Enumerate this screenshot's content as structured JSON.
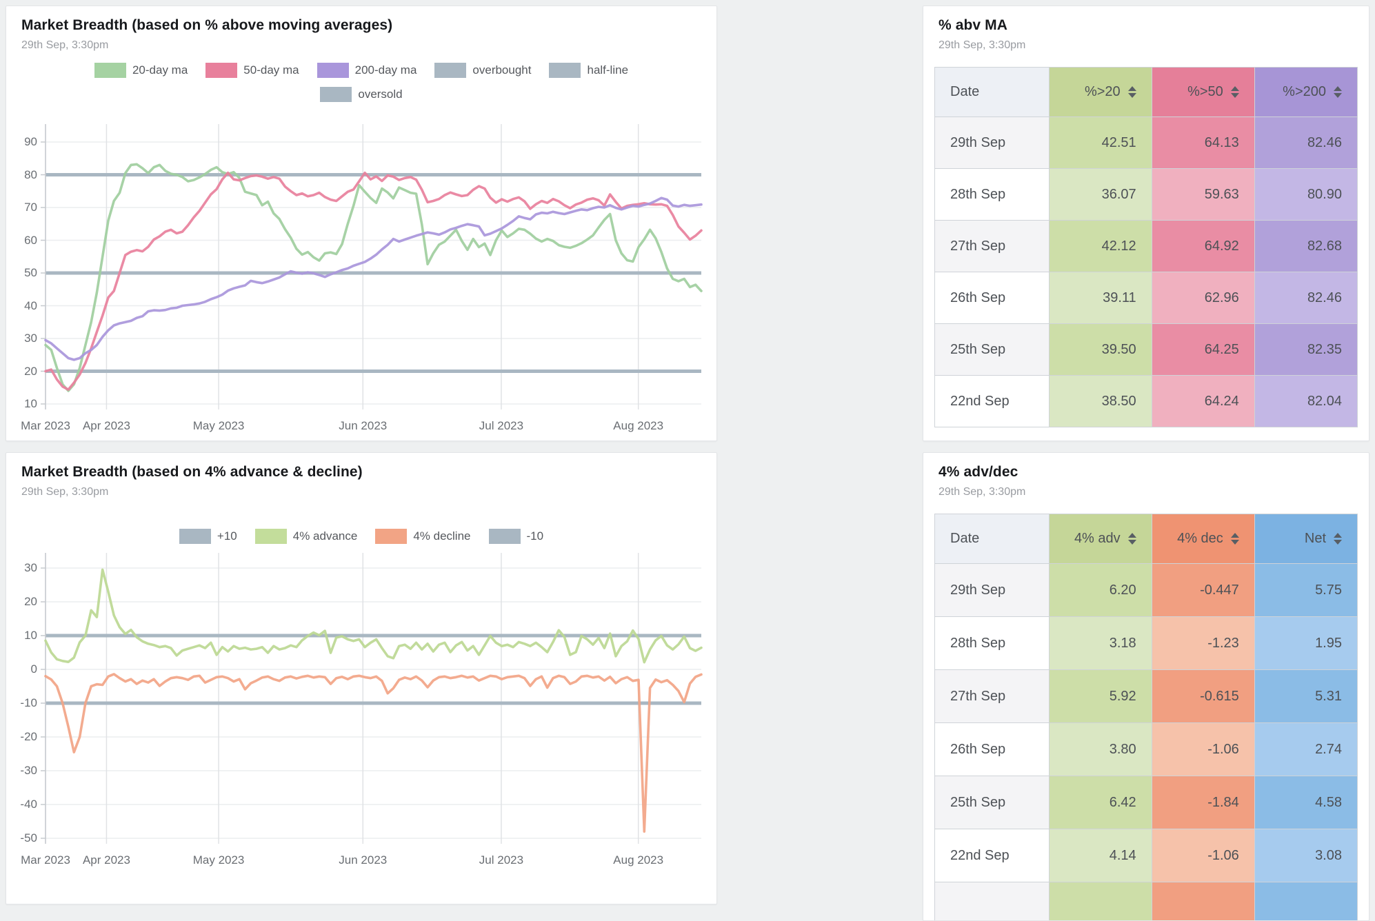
{
  "app": {
    "background": "#eef0f1",
    "accent_band_color": "#a9b7c2"
  },
  "panels": [
    {
      "title": "Market Breadth (based on % above moving averages)",
      "subtitle": "29th Sep, 3:30pm"
    },
    {
      "title": "Market Breadth (based on 4% advance & decline)",
      "subtitle": "29th Sep, 3:30pm"
    },
    {
      "title": "% abv MA",
      "subtitle": "29th Sep, 3:30pm"
    },
    {
      "title": "4% adv/dec",
      "subtitle": "29th Sep, 3:30pm"
    }
  ],
  "chart_data": [
    {
      "type": "line",
      "title": "Market Breadth (based on % above moving averages)",
      "legend": [
        {
          "label": "20-day ma",
          "color": "#a5d2a2",
          "row": 1
        },
        {
          "label": "50-day ma",
          "color": "#e8809c",
          "row": 1
        },
        {
          "label": "200-day ma",
          "color": "#a996db",
          "row": 1
        },
        {
          "label": "overbought",
          "color": "#a9b7c2",
          "row": 1
        },
        {
          "label": "half-line",
          "color": "#a9b7c2",
          "row": 1
        },
        {
          "label": "oversold",
          "color": "#a9b7c2",
          "row": 2
        }
      ],
      "x_labels": [
        {
          "label": "Mar 2023",
          "f": 0.0
        },
        {
          "label": "Apr 2023",
          "f": 0.093
        },
        {
          "label": "May 2023",
          "f": 0.264
        },
        {
          "label": "Jun 2023",
          "f": 0.484
        },
        {
          "label": "Jul 2023",
          "f": 0.695
        },
        {
          "label": "Aug 2023",
          "f": 0.904
        }
      ],
      "y_ticks": [
        90,
        80,
        70,
        60,
        50,
        40,
        30,
        20,
        10
      ],
      "ylim": [
        10,
        90
      ],
      "grid": true,
      "legend_position": "top",
      "bands": [
        {
          "label": "overbought",
          "value": 80
        },
        {
          "label": "half-line",
          "value": 50
        },
        {
          "label": "oversold",
          "value": 20
        }
      ],
      "series": [
        {
          "name": "20-day ma",
          "color": "#9fce9e",
          "values": [
            28,
            26.5,
            21,
            16,
            14,
            16,
            21,
            28,
            35,
            44,
            55,
            66,
            72,
            74.5,
            80.5,
            83,
            83.2,
            82,
            80.5,
            82.3,
            83,
            81.2,
            80.3,
            80,
            79.3,
            78,
            78.4,
            79.2,
            80.2,
            81.5,
            82.3,
            80.8,
            80.2,
            80.8,
            79,
            74.8,
            74.3,
            73.8,
            70.7,
            71.8,
            68.2,
            66.5,
            63.4,
            60.8,
            57.4,
            55.6,
            56.4,
            54.8,
            53.8,
            56,
            56.3,
            55.8,
            58.8,
            65,
            70.5,
            76.8,
            74.8,
            72.9,
            71.4,
            75.8,
            74.6,
            72.8,
            76.1,
            75.3,
            74.5,
            74.2,
            64.8,
            52.7,
            56,
            58.6,
            59.6,
            61.4,
            63.2,
            59.8,
            57.1,
            60.4,
            57.9,
            59,
            55.5,
            60,
            63,
            61,
            62.1,
            63.5,
            63.2,
            62,
            60.5,
            59.6,
            60.4,
            59.8,
            58.5,
            58,
            57.7,
            58.3,
            59.1,
            60.2,
            61.5,
            63.9,
            66.2,
            68,
            60,
            56,
            53.9,
            53.5,
            57.9,
            60.3,
            63.2,
            60.6,
            56.4,
            51.4,
            48.2,
            47.5,
            48.2,
            45.7,
            46.4,
            44.5
          ]
        },
        {
          "name": "50-day ma",
          "color": "#e8809c",
          "values": [
            20,
            20.5,
            17.5,
            15.3,
            14.4,
            16.5,
            19,
            22.5,
            27,
            32,
            37,
            42.5,
            44.5,
            50,
            55.5,
            56.5,
            57,
            56.6,
            58,
            60.2,
            61.2,
            62.6,
            63.2,
            62.1,
            62.6,
            64.6,
            67,
            69,
            71.5,
            74,
            75.6,
            78.6,
            80.6,
            78.6,
            78.3,
            79,
            79.6,
            79.8,
            79.4,
            78.8,
            79.3,
            78.8,
            76.4,
            75,
            73.8,
            74.3,
            73.4,
            73.8,
            74.5,
            73.2,
            72.4,
            72,
            73.4,
            74.8,
            75.5,
            78,
            80.6,
            78.6,
            79.5,
            78.1,
            79.8,
            79.4,
            78.4,
            79,
            79.3,
            78.5,
            75.4,
            71.6,
            72,
            72.6,
            73.8,
            74.6,
            74,
            73.5,
            73.8,
            75.4,
            76.5,
            75.8,
            73,
            71.5,
            72.5,
            71.8,
            72.6,
            73.1,
            71.9,
            69.6,
            71,
            72,
            71.4,
            72.6,
            71.9,
            70.7,
            69.8,
            70.9,
            71.5,
            72.4,
            72.8,
            72.2,
            70.6,
            74,
            71.7,
            69.7,
            70.5,
            70.8,
            71,
            71.3,
            71,
            70.9,
            71,
            70.5,
            67.7,
            64.2,
            62.3,
            60.2,
            61.4,
            63
          ]
        },
        {
          "name": "200-day ma",
          "color": "#a996db",
          "values": [
            29.5,
            28.5,
            27,
            25.5,
            24,
            23.5,
            24,
            25.5,
            26.5,
            28,
            30.5,
            32.5,
            34,
            34.6,
            35,
            35.4,
            36.3,
            36.8,
            38.3,
            38.6,
            38.5,
            38.7,
            39.2,
            39.4,
            40,
            40.2,
            40.4,
            40.7,
            41.2,
            42,
            42.6,
            43.4,
            44.6,
            45.3,
            45.8,
            46.2,
            47.6,
            47.2,
            46.9,
            47.4,
            48,
            48.6,
            49.6,
            50.5,
            50.1,
            49.8,
            50.2,
            49.9,
            49.4,
            48.8,
            49.6,
            50.2,
            50.9,
            51.4,
            52.2,
            52.8,
            53.4,
            54.4,
            55.6,
            57.2,
            58.6,
            60.4,
            59.6,
            60.2,
            60.8,
            61.4,
            61.9,
            62.4,
            62.1,
            61.7,
            62.4,
            63.3,
            63.8,
            64.4,
            64.9,
            64.6,
            64.2,
            61.5,
            62,
            62.8,
            63.6,
            64.7,
            65.9,
            67.3,
            66.8,
            66.4,
            67.9,
            68.4,
            68.2,
            68.7,
            68.3,
            68,
            68.5,
            69,
            69.4,
            69.2,
            69.8,
            70.2,
            70,
            70.7,
            69.9,
            69.4,
            70,
            70.5,
            70.3,
            70.8,
            71.2,
            72,
            72.9,
            72.4,
            70.6,
            70.3,
            70.8,
            70.5,
            70.7,
            70.9
          ]
        }
      ]
    },
    {
      "type": "line",
      "title": "Market Breadth (based on 4% advance & decline)",
      "legend": [
        {
          "label": "+10",
          "color": "#a9b7c2",
          "row": 1
        },
        {
          "label": "4% advance",
          "color": "#c3dd9b",
          "row": 1
        },
        {
          "label": "4% decline",
          "color": "#f2a485",
          "row": 1
        },
        {
          "label": "-10",
          "color": "#a9b7c2",
          "row": 1
        }
      ],
      "x_labels": [
        {
          "label": "Mar 2023",
          "f": 0.0
        },
        {
          "label": "Apr 2023",
          "f": 0.093
        },
        {
          "label": "May 2023",
          "f": 0.264
        },
        {
          "label": "Jun 2023",
          "f": 0.484
        },
        {
          "label": "Jul 2023",
          "f": 0.695
        },
        {
          "label": "Aug 2023",
          "f": 0.904
        }
      ],
      "y_ticks": [
        30,
        20,
        10,
        0,
        -10,
        -20,
        -30,
        -40,
        -50
      ],
      "ylim": [
        -50,
        30
      ],
      "grid": true,
      "legend_position": "top",
      "bands": [
        {
          "label": "+10",
          "value": 10
        },
        {
          "label": "-10",
          "value": -10
        }
      ],
      "series": [
        {
          "name": "4% advance",
          "color": "#bcd893",
          "values": [
            8.5,
            5,
            3,
            2.5,
            2.2,
            3.5,
            8,
            10,
            17.5,
            15.5,
            29.5,
            23,
            16,
            12.5,
            10.5,
            11.7,
            9.5,
            8.3,
            7.6,
            7.2,
            6.6,
            6.9,
            6.3,
            4.1,
            5.6,
            6.1,
            6.6,
            7.1,
            6.3,
            7.9,
            4.3,
            6.6,
            5.3,
            6.9,
            6.1,
            6.4,
            5.9,
            6.1,
            6.6,
            4.9,
            6.9,
            5.9,
            6.3,
            7.1,
            6.6,
            8.6,
            9.9,
            10.9,
            10.1,
            11.4,
            4.9,
            9.4,
            9.8,
            8.9,
            8.4,
            8.9,
            6.6,
            7.9,
            8.9,
            6.3,
            3.9,
            3.3,
            6.9,
            7.3,
            6.1,
            7.9,
            5.9,
            7.6,
            5.3,
            7.3,
            7.9,
            5.1,
            7.1,
            8.1,
            5.6,
            6.9,
            4.3,
            7.1,
            9.9,
            7.9,
            6.9,
            7.3,
            6.6,
            8.1,
            7.6,
            6.9,
            7.9,
            6.6,
            5.1,
            8.1,
            11.6,
            9.6,
            4.3,
            5.1,
            9.9,
            8.9,
            7.3,
            9.3,
            6.3,
            10.6,
            3.9,
            6.9,
            8.3,
            11.5,
            9,
            2.1,
            5.9,
            8.6,
            9.9,
            7.1,
            5.9,
            7.4,
            9.7,
            6.3,
            5.5,
            6.4
          ]
        },
        {
          "name": "4% decline",
          "color": "#f2a485",
          "values": [
            -2,
            -3,
            -5,
            -10,
            -17,
            -24.5,
            -20,
            -10,
            -5,
            -4.4,
            -4.6,
            -2.1,
            -1.4,
            -2.6,
            -3.6,
            -2.9,
            -4.3,
            -3.3,
            -3.9,
            -2.9,
            -4.9,
            -3.6,
            -2.6,
            -2.3,
            -2.6,
            -3.1,
            -2.1,
            -1.9,
            -3.9,
            -3.1,
            -2.3,
            -2.1,
            -2.6,
            -3.6,
            -2.9,
            -5.9,
            -4.1,
            -3.3,
            -2.4,
            -2.1,
            -2.9,
            -3.4,
            -2.4,
            -2.1,
            -2.7,
            -2.2,
            -1.9,
            -2.4,
            -2.1,
            -2.3,
            -4.3,
            -2.6,
            -2.2,
            -2.9,
            -2.1,
            -1.9,
            -2.3,
            -2.6,
            -2.1,
            -3.4,
            -7.1,
            -5.6,
            -3.1,
            -2.4,
            -2.9,
            -2.1,
            -3.3,
            -5.3,
            -3.3,
            -2.3,
            -2.1,
            -2.6,
            -2.3,
            -1.9,
            -2.4,
            -2.1,
            -3.3,
            -2.6,
            -1.9,
            -2.1,
            -2.9,
            -2.3,
            -2.1,
            -1.9,
            -2.6,
            -4.9,
            -2.9,
            -2.1,
            -5.4,
            -2.6,
            -1.9,
            -2.3,
            -4.3,
            -3.6,
            -2.1,
            -1.9,
            -2.4,
            -2.1,
            -3.3,
            -2.2,
            -4.1,
            -2.9,
            -2.3,
            -3.4,
            -3.1,
            -48,
            -5.5,
            -3,
            -3.8,
            -3.2,
            -4.6,
            -6.4,
            -9.7,
            -4.2,
            -2.2,
            -1.5
          ]
        }
      ]
    }
  ],
  "tables": [
    {
      "title": "% abv MA",
      "subtitle": "29th Sep, 3:30pm",
      "columns": [
        {
          "label": "Date",
          "sortable": false,
          "header_bg": "#edf0f5",
          "odd_bg": "#f4f4f6",
          "even_bg": "#ffffff",
          "align": "left"
        },
        {
          "label": "%>20",
          "sortable": true,
          "header_bg": "#c5d698",
          "odd_bg": "#cddea8",
          "even_bg": "#dae7c3",
          "align": "right"
        },
        {
          "label": "%>50",
          "sortable": true,
          "header_bg": "#e57f99",
          "odd_bg": "#e98da4",
          "even_bg": "#f0b0bf",
          "align": "right"
        },
        {
          "label": "%>200",
          "sortable": true,
          "header_bg": "#a795d6",
          "odd_bg": "#b1a1da",
          "even_bg": "#c3b7e5",
          "align": "right"
        }
      ],
      "rows": [
        [
          "29th Sep",
          "42.51",
          "64.13",
          "82.46"
        ],
        [
          "28th Sep",
          "36.07",
          "59.63",
          "80.90"
        ],
        [
          "27th Sep",
          "42.12",
          "64.92",
          "82.68"
        ],
        [
          "26th Sep",
          "39.11",
          "62.96",
          "82.46"
        ],
        [
          "25th Sep",
          "39.50",
          "64.25",
          "82.35"
        ],
        [
          "22nd Sep",
          "38.50",
          "64.24",
          "82.04"
        ]
      ],
      "partial_row": false
    },
    {
      "title": "4% adv/dec",
      "subtitle": "29th Sep, 3:30pm",
      "columns": [
        {
          "label": "Date",
          "sortable": false,
          "header_bg": "#edf0f5",
          "odd_bg": "#f4f4f6",
          "even_bg": "#ffffff",
          "align": "left"
        },
        {
          "label": "4% adv",
          "sortable": true,
          "header_bg": "#c5d698",
          "odd_bg": "#cddea8",
          "even_bg": "#dae7c3",
          "align": "right"
        },
        {
          "label": "4% dec",
          "sortable": true,
          "header_bg": "#ef9372",
          "odd_bg": "#f19f81",
          "even_bg": "#f6c2aa",
          "align": "right"
        },
        {
          "label": "Net",
          "sortable": true,
          "header_bg": "#7cb2e2",
          "odd_bg": "#8bbce6",
          "even_bg": "#a6cbee",
          "align": "right"
        }
      ],
      "rows": [
        [
          "29th Sep",
          "6.20",
          "-0.447",
          "5.75"
        ],
        [
          "28th Sep",
          "3.18",
          "-1.23",
          "1.95"
        ],
        [
          "27th Sep",
          "5.92",
          "-0.615",
          "5.31"
        ],
        [
          "26th Sep",
          "3.80",
          "-1.06",
          "2.74"
        ],
        [
          "25th Sep",
          "6.42",
          "-1.84",
          "4.58"
        ],
        [
          "22nd Sep",
          "4.14",
          "-1.06",
          "3.08"
        ]
      ],
      "partial_row": true
    }
  ]
}
